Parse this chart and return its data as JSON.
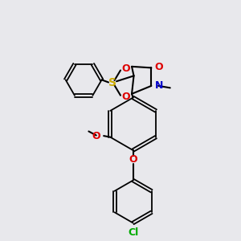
{
  "bg_color": "#e8e8ec",
  "lc": "black",
  "lw": 1.5,
  "lw_ring": 1.3,
  "colors": {
    "O": "#dd0000",
    "N": "#0000cc",
    "S": "#ccaa00",
    "Cl": "#00aa00"
  },
  "fs": 9.0,
  "xlim": [
    0.5,
    9.5
  ],
  "ylim": [
    0.3,
    9.7
  ]
}
